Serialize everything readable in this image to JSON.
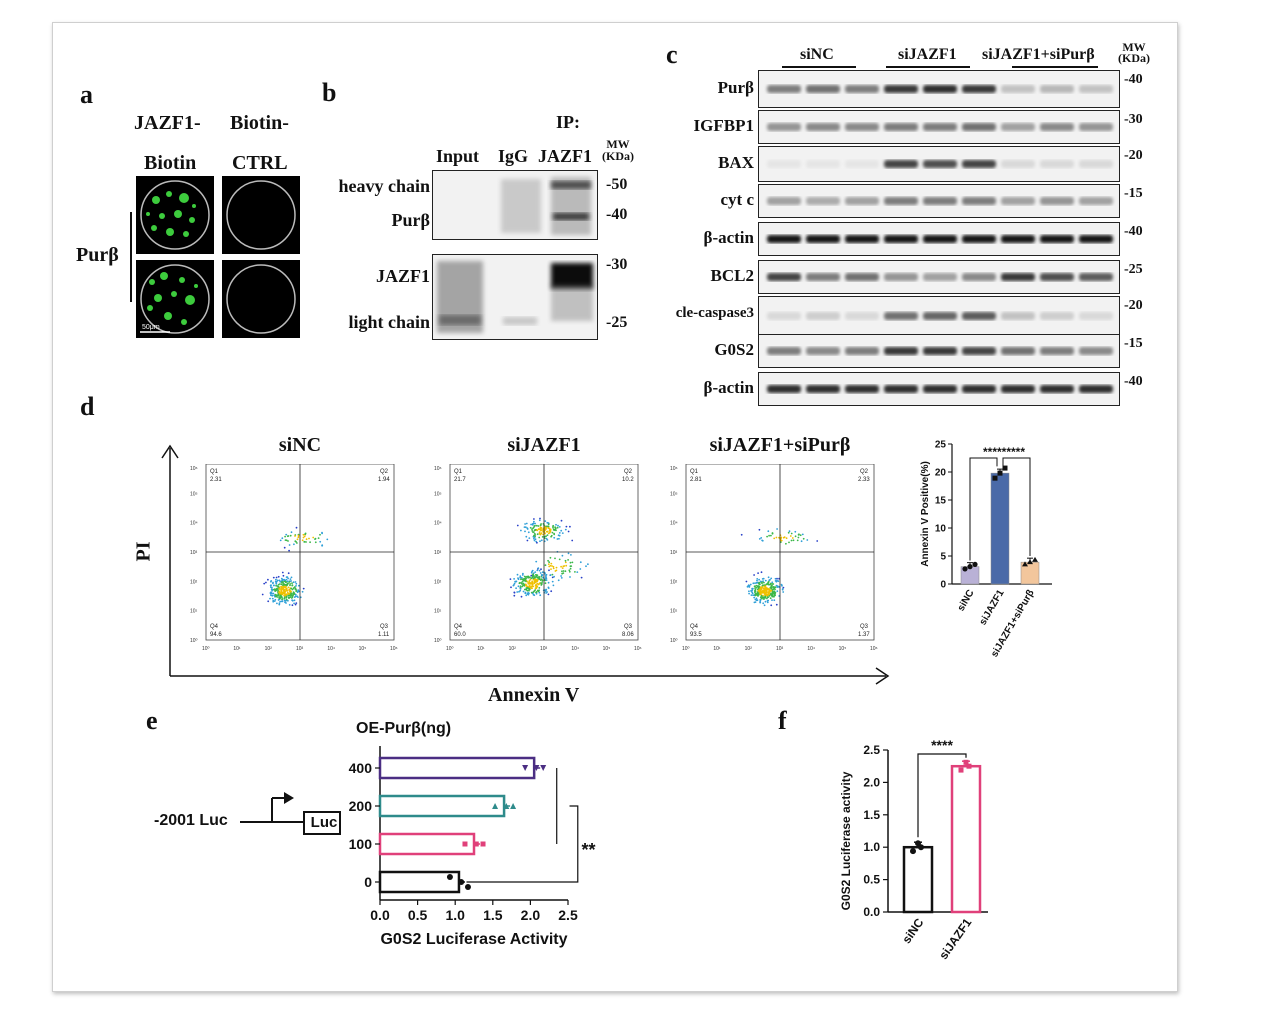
{
  "panels": {
    "a": "a",
    "b": "b",
    "c": "c",
    "d": "d",
    "e": "e",
    "f": "f"
  },
  "panel_a": {
    "col1_line1": "JAZF1-",
    "col1_line2": "Biotin",
    "col2_line1": "Biotin-",
    "col2_line2": "CTRL",
    "row_label": "Purβ",
    "scale_bar": "50μm"
  },
  "panel_b": {
    "ip_label": "IP:",
    "lanes": [
      "Input",
      "IgG",
      "JAZF1"
    ],
    "mw_header_1": "MW",
    "mw_header_2": "(KDa)",
    "top_labels": [
      "heavy chain",
      "Purβ"
    ],
    "bottom_labels": [
      "JAZF1",
      "light chain"
    ],
    "mw_top": [
      "-50",
      "-40"
    ],
    "mw_bottom": [
      "-30",
      "-25"
    ]
  },
  "panel_c": {
    "groups": [
      "siNC",
      "siJAZF1",
      "siJAZF1+siPurβ"
    ],
    "mw_header_1": "MW",
    "mw_header_2": "(KDa)",
    "rows": [
      {
        "label": "Purβ",
        "mw": "-40"
      },
      {
        "label": "IGFBP1",
        "mw": "-30"
      },
      {
        "label": "BAX",
        "mw": "-20"
      },
      {
        "label": "cyt c",
        "mw": "-15"
      },
      {
        "label": "β-actin",
        "mw": "-40"
      },
      {
        "label": "BCL2",
        "mw": "-25"
      },
      {
        "label": "cle-caspase3",
        "mw": "-20"
      },
      {
        "label": "G0S2",
        "mw": "-15"
      },
      {
        "label": "β-actin",
        "mw": "-40"
      }
    ]
  },
  "panel_d": {
    "y_axis": "PI",
    "x_axis": "Annexin V",
    "plots": [
      {
        "title": "siNC",
        "q1": "2.31",
        "q2": "1.94",
        "q3": "1.11",
        "q4": "94.6"
      },
      {
        "title": "siJAZF1",
        "q1": "21.7",
        "q2": "10.2",
        "q3": "8.06",
        "q4": "60.0"
      },
      {
        "title": "siJAZF1+siPurβ",
        "q1": "2.81",
        "q2": "2.33",
        "q3": "1.37",
        "q4": "93.5"
      }
    ],
    "quadrant_names": [
      "Q1",
      "Q2",
      "Q3",
      "Q4"
    ],
    "decade_labels": [
      "10⁰",
      "10¹",
      "10²",
      "10³",
      "10⁴",
      "10⁵",
      "10⁶"
    ]
  },
  "chart_data": [
    {
      "type": "bar",
      "panel": "d",
      "categories": [
        "siNC",
        "siJAZF1",
        "siJAZF1+siPurβ"
      ],
      "values": [
        3.1,
        19.8,
        3.9
      ],
      "ylabel": "Annexin V Positive(%)",
      "ylim": [
        0,
        25
      ],
      "yticks": [
        "0",
        "5",
        "10",
        "15",
        "20",
        "25"
      ],
      "significance": "*********",
      "colors": [
        "#b9b1d6",
        "#4a6aa8",
        "#f2c69c"
      ]
    },
    {
      "type": "bar",
      "panel": "e",
      "orientation": "horizontal",
      "categories": [
        "400",
        "200",
        "100",
        "0"
      ],
      "values": [
        2.05,
        1.65,
        1.25,
        1.05
      ],
      "title": "OE-Purβ(ng)",
      "xlabel": "G0S2 Luciferase Activity",
      "xlim": [
        0,
        2.5
      ],
      "xticks": [
        "0.0",
        "0.5",
        "1.0",
        "1.5",
        "2.0",
        "2.5"
      ],
      "significance": "**",
      "colors": [
        "#4b2e83",
        "#2e8b8b",
        "#e0407a",
        "#111111"
      ],
      "construct_label": "-2001 Luc",
      "luc_box": "Luc"
    },
    {
      "type": "bar",
      "panel": "f",
      "categories": [
        "siNC",
        "siJAZF1"
      ],
      "values": [
        1.0,
        2.25
      ],
      "ylabel": "G0S2 Luciferase activity",
      "ylim": [
        0,
        2.5
      ],
      "yticks": [
        "0.0",
        "0.5",
        "1.0",
        "1.5",
        "2.0",
        "2.5"
      ],
      "significance": "****",
      "colors": [
        "#111111",
        "#e0407a"
      ]
    }
  ]
}
